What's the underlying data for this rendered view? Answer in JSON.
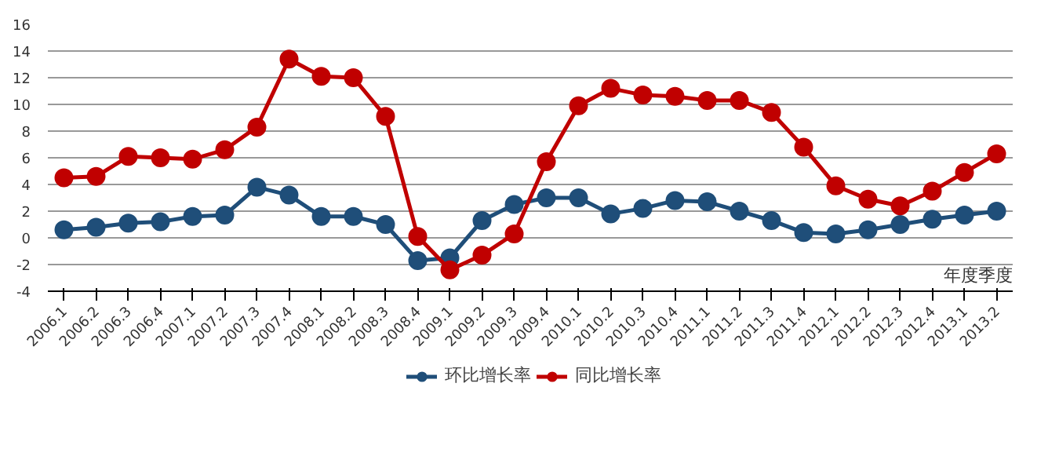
{
  "chart_data": {
    "type": "line",
    "xlabel": "年度季度",
    "categories": [
      "2006.1",
      "2006.2",
      "2006.3",
      "2006.4",
      "2007.1",
      "2007.2",
      "2007.3",
      "2007.4",
      "2008.1",
      "2008.2",
      "2008.3",
      "2008.4",
      "2009.1",
      "2009.2",
      "2009.3",
      "2009.4",
      "2010.1",
      "2010.2",
      "2010.3",
      "2010.4",
      "2011.1",
      "2011.2",
      "2011.3",
      "2011.4",
      "2012.1",
      "2012.2",
      "2012.3",
      "2012.4",
      "2013.1",
      "2013.2"
    ],
    "series": [
      {
        "name": "环比增长率",
        "color": "#1f4e79",
        "values": [
          0.6,
          0.8,
          1.1,
          1.2,
          1.6,
          1.7,
          3.8,
          3.2,
          1.6,
          1.6,
          1.0,
          -1.7,
          -1.5,
          1.3,
          2.5,
          3.0,
          3.0,
          1.8,
          2.2,
          2.8,
          2.7,
          2.0,
          1.3,
          0.4,
          0.3,
          0.6,
          1.0,
          1.4,
          1.7,
          2.0
        ]
      },
      {
        "name": "同比增长率",
        "color": "#c00000",
        "values": [
          4.5,
          4.6,
          6.1,
          6.0,
          5.9,
          6.6,
          8.3,
          13.4,
          12.1,
          12.0,
          9.1,
          0.1,
          -2.4,
          -1.3,
          0.3,
          5.7,
          9.9,
          11.2,
          10.7,
          10.6,
          10.3,
          10.3,
          9.4,
          6.8,
          3.9,
          2.9,
          2.4,
          3.5,
          4.9,
          6.3
        ]
      }
    ],
    "ylim": [
      -4,
      16
    ],
    "yticks": [
      -4,
      -2,
      0,
      2,
      4,
      6,
      8,
      10,
      12,
      14,
      16
    ],
    "grid": "y",
    "legend": "bottom",
    "marker": "circle",
    "line_style": "solid"
  }
}
